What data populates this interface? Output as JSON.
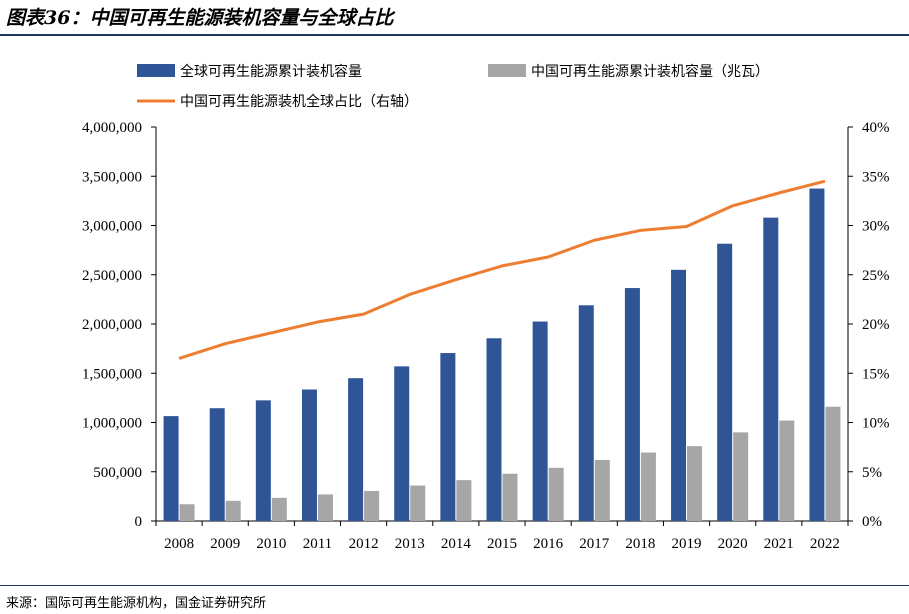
{
  "header": {
    "title": "图表36：中国可再生能源装机容量与全球占比"
  },
  "footer": {
    "source": "来源：国际可再生能源机构，国金证券研究所"
  },
  "colors": {
    "global": "#2f5597",
    "china": "#a6a6a6",
    "share": "#ed7d31",
    "rule": "#1f3864"
  },
  "chart_data": {
    "type": "bar",
    "categories": [
      "2008",
      "2009",
      "2010",
      "2011",
      "2012",
      "2013",
      "2014",
      "2015",
      "2016",
      "2017",
      "2018",
      "2019",
      "2020",
      "2021",
      "2022"
    ],
    "series": [
      {
        "name": "全球可再生能源累计装机容量",
        "type": "bar",
        "axis": "left",
        "values": [
          1065000,
          1145000,
          1225000,
          1335000,
          1450000,
          1570000,
          1705000,
          1855000,
          2025000,
          2190000,
          2365000,
          2550000,
          2815000,
          3080000,
          3375000
        ]
      },
      {
        "name": "中国可再生能源累计装机容量（兆瓦）",
        "type": "bar",
        "axis": "left",
        "values": [
          170000,
          205000,
          235000,
          270000,
          305000,
          360000,
          415000,
          480000,
          540000,
          620000,
          695000,
          760000,
          900000,
          1020000,
          1160000
        ]
      },
      {
        "name": "中国可再生能源装机全球占比（右轴）",
        "type": "line",
        "axis": "right",
        "values": [
          16.5,
          18.0,
          19.1,
          20.2,
          21.0,
          23.0,
          24.5,
          25.9,
          26.8,
          28.5,
          29.5,
          29.9,
          32.0,
          33.3,
          34.5
        ]
      }
    ],
    "left_axis": {
      "ylim": [
        0,
        4000000
      ],
      "tick_labels": [
        "0",
        "500,000",
        "1,000,000",
        "1,500,000",
        "2,000,000",
        "2,500,000",
        "3,000,000",
        "3,500,000",
        "4,000,000"
      ]
    },
    "right_axis": {
      "ylim": [
        0,
        40
      ],
      "tick_labels": [
        "0%",
        "5%",
        "10%",
        "15%",
        "20%",
        "25%",
        "30%",
        "35%",
        "40%"
      ]
    },
    "legend_position": "top",
    "grid": false
  }
}
